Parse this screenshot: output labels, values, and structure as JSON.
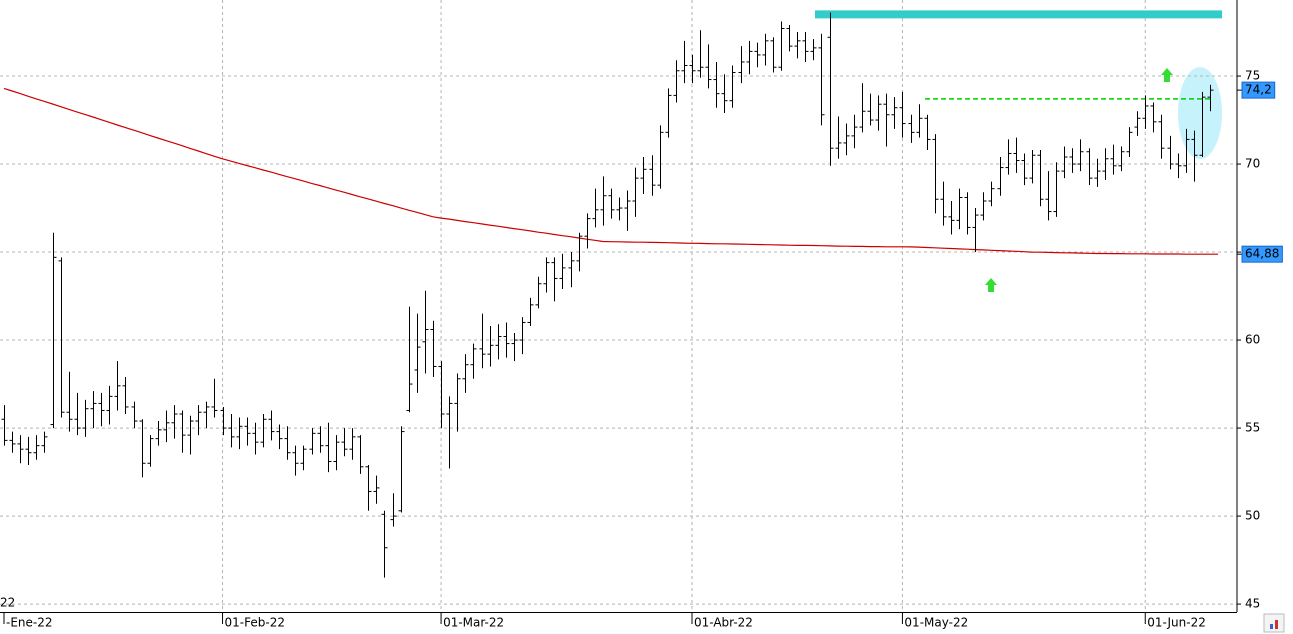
{
  "chart_data": {
    "type": "ohlc",
    "corner_label": "22",
    "color": "#000000",
    "categories": [
      "-Ene-22",
      null,
      null,
      null,
      null,
      null,
      null,
      null,
      null,
      null,
      null,
      null,
      null,
      null,
      null,
      null,
      null,
      null,
      null,
      null,
      null,
      null,
      null,
      null,
      null,
      null,
      null,
      "01-Feb-22",
      null,
      null,
      null,
      null,
      null,
      null,
      null,
      null,
      null,
      null,
      null,
      null,
      null,
      null,
      null,
      null,
      null,
      null,
      null,
      null,
      null,
      null,
      null,
      null,
      null,
      null,
      "01-Mar-22",
      null,
      null,
      null,
      null,
      null,
      null,
      null,
      null,
      null,
      null,
      null,
      null,
      null,
      null,
      null,
      null,
      null,
      null,
      null,
      null,
      null,
      null,
      null,
      null,
      null,
      null,
      null,
      null,
      null,
      null,
      "01-Abr-22",
      null,
      null,
      null,
      null,
      null,
      null,
      null,
      null,
      null,
      null,
      null,
      null,
      null,
      null,
      null,
      null,
      null,
      null,
      null,
      null,
      null,
      null,
      null,
      null,
      null,
      "01-May-22",
      null,
      null,
      null,
      null,
      null,
      null,
      null,
      null,
      null,
      null,
      null,
      null,
      null,
      null,
      null,
      null,
      null,
      null,
      null,
      null,
      null,
      null,
      null,
      null,
      null,
      null,
      null,
      null,
      null,
      "01-Jun-22",
      null,
      null,
      null,
      null,
      null,
      null,
      null,
      null
    ],
    "open": [
      55.5,
      54.3,
      54.1,
      53.8,
      53.6,
      54.0,
      55.2,
      64.5,
      55.9,
      55.5,
      55.0,
      56.1,
      56.4,
      56.0,
      56.8,
      57.4,
      56.2,
      55.4,
      53.0,
      54.4,
      54.9,
      55.3,
      55.8,
      54.6,
      55.4,
      55.9,
      56.2,
      56.0,
      55.0,
      54.5,
      55.1,
      54.7,
      54.2,
      55.5,
      54.8,
      54.4,
      53.6,
      53.0,
      53.8,
      54.7,
      54.0,
      53.1,
      54.2,
      53.8,
      54.5,
      52.8,
      51.4,
      50.1,
      49.8,
      50.3,
      56.0,
      58.3,
      59.9,
      60.6,
      58.5,
      55.8,
      56.4,
      57.8,
      58.6,
      59.5,
      59.2,
      59.7,
      60.2,
      59.8,
      60.0,
      61.0,
      62.0,
      63.2,
      64.4,
      63.5,
      64.1,
      64.5,
      65.9,
      66.9,
      67.4,
      68.2,
      67.4,
      67.5,
      67.9,
      69.2,
      69.7,
      68.8,
      71.8,
      73.9,
      75.3,
      75.6,
      75.3,
      75.5,
      74.8,
      74.0,
      73.6,
      75.2,
      75.8,
      76.4,
      76.2,
      77.0,
      75.5,
      77.7,
      76.7,
      77.0,
      76.4,
      76.6,
      77.2,
      70.9,
      71.2,
      71.6,
      72.1,
      73.0,
      72.5,
      73.4,
      72.8,
      73.2,
      72.3,
      71.8,
      72.6,
      71.4,
      68.0,
      67.0,
      66.8,
      68.1,
      66.4,
      67.1,
      67.9,
      68.6,
      69.8,
      70.6,
      70.2,
      69.2,
      70.5,
      68.0,
      67.3,
      69.6,
      70.4,
      70.0,
      70.7,
      69.2,
      69.6,
      70.3,
      69.9,
      70.7,
      72.1,
      72.6,
      73.3,
      72.4,
      70.9,
      70.0,
      69.9,
      71.4,
      70.5,
      73.8
    ],
    "high": [
      56.3,
      54.8,
      54.6,
      54.5,
      54.6,
      54.8,
      66.1,
      64.7,
      58.2,
      57.0,
      56.6,
      57.1,
      57.0,
      57.4,
      58.8,
      57.9,
      56.5,
      55.5,
      54.6,
      55.4,
      56.0,
      56.3,
      56.0,
      55.7,
      56.3,
      56.5,
      57.8,
      56.2,
      55.8,
      55.6,
      55.6,
      55.3,
      55.8,
      56.0,
      55.2,
      55.1,
      54.0,
      54.0,
      55.0,
      55.1,
      55.3,
      54.6,
      55.0,
      55.0,
      54.6,
      52.9,
      52.3,
      50.3,
      51.3,
      55.1,
      61.9,
      61.5,
      62.8,
      61.1,
      58.8,
      56.8,
      58.1,
      59.2,
      59.8,
      61.5,
      60.8,
      60.9,
      61.0,
      60.4,
      61.3,
      62.4,
      63.6,
      64.7,
      64.7,
      64.9,
      65.0,
      66.1,
      67.2,
      68.6,
      69.3,
      68.6,
      68.1,
      68.5,
      69.8,
      70.4,
      70.5,
      72.2,
      74.3,
      75.9,
      77.0,
      76.2,
      77.6,
      76.8,
      75.8,
      75.1,
      75.6,
      76.7,
      77.0,
      76.9,
      77.4,
      77.2,
      78.1,
      77.9,
      77.5,
      77.5,
      77.1,
      77.4,
      78.6,
      72.7,
      72.3,
      72.8,
      74.6,
      74.0,
      73.9,
      74.0,
      73.8,
      74.1,
      72.8,
      73.4,
      72.8,
      71.7,
      69.0,
      67.9,
      68.6,
      68.4,
      67.5,
      68.4,
      69.0,
      70.4,
      71.4,
      71.5,
      70.6,
      70.8,
      70.8,
      69.6,
      70.1,
      71.0,
      70.9,
      71.4,
      70.9,
      70.3,
      70.9,
      71.1,
      71.0,
      72.1,
      73.0,
      73.9,
      73.5,
      72.8,
      71.6,
      70.6,
      72.0,
      71.9,
      74.1,
      74.5
    ],
    "low": [
      54.0,
      53.6,
      53.0,
      52.9,
      53.2,
      53.6,
      55.0,
      55.6,
      54.8,
      54.6,
      54.5,
      55.0,
      55.1,
      55.2,
      56.0,
      55.8,
      55.0,
      52.2,
      52.8,
      54.0,
      54.2,
      54.4,
      53.6,
      53.5,
      54.6,
      55.0,
      55.6,
      54.6,
      53.9,
      53.8,
      54.0,
      53.5,
      53.9,
      54.3,
      53.8,
      53.2,
      52.3,
      52.6,
      53.5,
      53.6,
      52.5,
      52.6,
      53.4,
      53.2,
      52.4,
      50.3,
      50.7,
      46.5,
      49.4,
      50.2,
      55.9,
      57.0,
      58.1,
      57.9,
      55.0,
      52.7,
      54.8,
      57.0,
      57.8,
      58.4,
      58.5,
      58.9,
      59.0,
      58.8,
      59.2,
      60.8,
      61.8,
      62.7,
      62.2,
      62.9,
      63.0,
      63.9,
      65.2,
      66.4,
      66.5,
      66.9,
      66.8,
      66.2,
      67.0,
      68.3,
      68.2,
      68.6,
      71.5,
      73.5,
      74.6,
      74.6,
      74.9,
      74.3,
      73.2,
      72.9,
      73.2,
      74.6,
      75.1,
      75.5,
      75.6,
      75.2,
      75.3,
      76.4,
      76.0,
      75.8,
      75.9,
      72.2,
      69.9,
      70.3,
      70.5,
      70.9,
      71.8,
      72.2,
      71.9,
      71.0,
      72.0,
      71.5,
      71.2,
      71.5,
      70.8,
      67.2,
      66.5,
      66.0,
      66.3,
      66.0,
      65.0,
      66.8,
      67.6,
      68.2,
      69.4,
      69.5,
      68.8,
      68.9,
      67.6,
      66.8,
      67.0,
      69.2,
      69.5,
      69.6,
      68.8,
      68.7,
      69.1,
      69.4,
      69.6,
      70.4,
      71.6,
      72.0,
      71.8,
      70.3,
      69.7,
      69.2,
      69.5,
      69.0,
      70.4,
      73.0
    ],
    "close": [
      54.3,
      54.1,
      53.8,
      53.6,
      54.0,
      54.5,
      64.7,
      55.9,
      55.5,
      55.0,
      56.1,
      56.4,
      56.0,
      56.8,
      57.4,
      56.2,
      55.4,
      53.0,
      54.4,
      54.9,
      55.3,
      55.8,
      54.6,
      55.4,
      55.9,
      56.2,
      56.0,
      55.0,
      54.5,
      55.1,
      54.7,
      54.2,
      55.5,
      54.8,
      54.4,
      53.6,
      53.0,
      53.8,
      54.7,
      54.0,
      53.1,
      54.2,
      53.8,
      54.5,
      52.8,
      51.4,
      51.6,
      48.2,
      50.0,
      54.8,
      57.5,
      59.6,
      60.6,
      58.5,
      55.8,
      56.4,
      57.8,
      58.6,
      59.5,
      59.2,
      59.7,
      60.2,
      59.8,
      60.0,
      61.0,
      62.0,
      63.2,
      64.4,
      63.5,
      64.1,
      64.5,
      65.9,
      66.9,
      67.4,
      68.2,
      67.4,
      67.5,
      67.9,
      69.2,
      69.7,
      68.8,
      71.8,
      73.9,
      75.3,
      75.6,
      75.3,
      75.5,
      74.8,
      74.0,
      73.6,
      75.2,
      75.8,
      76.4,
      76.2,
      77.0,
      75.5,
      77.7,
      76.7,
      77.0,
      76.4,
      76.6,
      72.8,
      70.9,
      71.2,
      71.6,
      72.1,
      73.0,
      72.5,
      73.4,
      72.8,
      73.2,
      72.3,
      71.8,
      72.6,
      71.4,
      68.0,
      67.0,
      66.8,
      68.1,
      66.4,
      67.1,
      67.9,
      68.6,
      69.8,
      70.6,
      70.2,
      69.2,
      70.5,
      68.0,
      67.3,
      69.6,
      70.4,
      70.0,
      70.7,
      69.2,
      69.6,
      70.3,
      69.9,
      70.7,
      71.8,
      72.6,
      73.3,
      72.4,
      70.9,
      70.0,
      69.9,
      71.4,
      70.5,
      73.8,
      74.2
    ],
    "moving_average": {
      "color": "#cc0000",
      "values": [
        74.3,
        74.15,
        74.0,
        73.85,
        73.7,
        73.56,
        73.41,
        73.26,
        73.11,
        72.96,
        72.82,
        72.67,
        72.52,
        72.37,
        72.22,
        72.07,
        71.93,
        71.78,
        71.63,
        71.48,
        71.33,
        71.19,
        71.04,
        70.89,
        70.74,
        70.59,
        70.44,
        70.3,
        70.17,
        70.04,
        69.92,
        69.79,
        69.66,
        69.54,
        69.41,
        69.28,
        69.16,
        69.03,
        68.9,
        68.78,
        68.65,
        68.52,
        68.4,
        68.27,
        68.14,
        68.02,
        67.89,
        67.76,
        67.64,
        67.51,
        67.38,
        67.26,
        67.13,
        67.0,
        66.93,
        66.87,
        66.8,
        66.73,
        66.67,
        66.6,
        66.53,
        66.47,
        66.4,
        66.33,
        66.27,
        66.2,
        66.13,
        66.07,
        66.0,
        65.93,
        65.87,
        65.8,
        65.73,
        65.67,
        65.6,
        65.59,
        65.58,
        65.57,
        65.56,
        65.56,
        65.55,
        65.54,
        65.53,
        65.52,
        65.51,
        65.5,
        65.49,
        65.48,
        65.47,
        65.47,
        65.46,
        65.45,
        65.44,
        65.43,
        65.42,
        65.41,
        65.4,
        65.39,
        65.38,
        65.38,
        65.37,
        65.36,
        65.35,
        65.34,
        65.33,
        65.32,
        65.32,
        65.31,
        65.31,
        65.3,
        65.3,
        65.3,
        65.29,
        65.28,
        65.26,
        65.24,
        65.22,
        65.2,
        65.18,
        65.16,
        65.14,
        65.12,
        65.1,
        65.08,
        65.06,
        65.04,
        65.02,
        65.0,
        64.99,
        64.98,
        64.97,
        64.96,
        64.95,
        64.94,
        64.93,
        64.92,
        64.92,
        64.91,
        64.91,
        64.9,
        64.9,
        64.9,
        64.89,
        64.89,
        64.89,
        64.89,
        64.88,
        64.88,
        64.88,
        64.88,
        64.88
      ]
    },
    "levels": [
      {
        "value": 78.5,
        "color": "#33cccc"
      },
      {
        "value": 73.7,
        "color": "#00cc00",
        "dashed": true
      }
    ],
    "price_labels": [
      {
        "value": 74.2,
        "label": "74,2"
      },
      {
        "value": 64.88,
        "label": "64,88"
      }
    ],
    "ylim": [
      44.55,
      79.32
    ],
    "yticks": [
      45,
      50,
      55,
      60,
      65,
      70,
      75
    ],
    "grid": true
  }
}
